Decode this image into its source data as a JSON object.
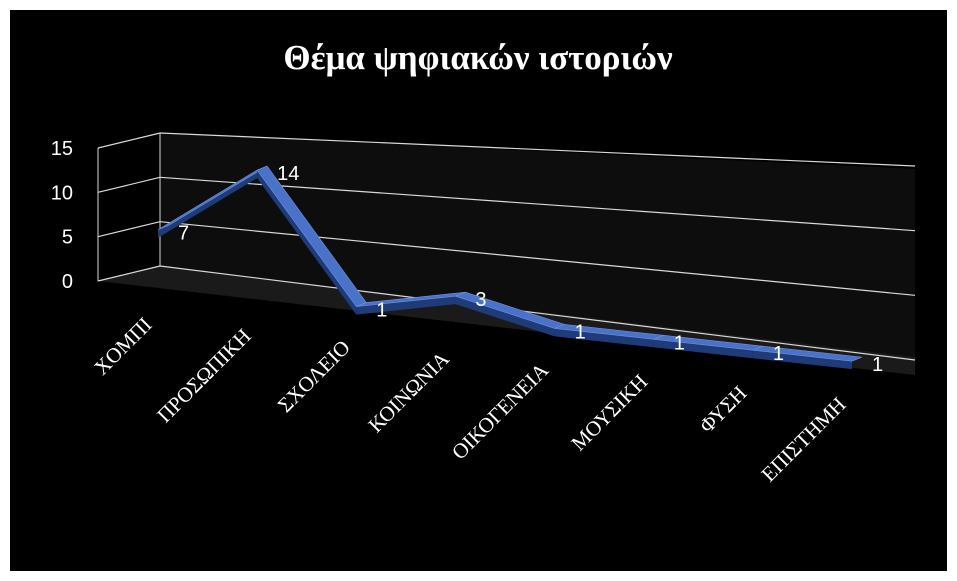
{
  "chart_data": {
    "type": "line",
    "title": "Θέμα ψηφιακών ιστοριών",
    "categories": [
      "ΧΟΜΠΙ",
      "ΠΡΟΣΩΠΙΚΗ",
      "ΣΧΟΛΕΙΟ",
      "ΚΟΙΝΩΝΙΑ",
      "ΟΙΚΟΓΕΝΕΙΑ",
      "ΜΟΥΣΙΚΗ",
      "ΦΥΣΗ",
      "ΕΠΙΣΤΗΜΗ"
    ],
    "values": [
      7,
      14,
      1,
      3,
      1,
      1,
      1,
      1
    ],
    "yticks": [
      0,
      5,
      10,
      15
    ],
    "ylim": [
      0,
      15
    ],
    "grid": true,
    "legend": "none",
    "colors": {
      "background": "#000000",
      "line_top": "#4a72c8",
      "line_side": "#1f3b78",
      "grid": "#d9d9d9"
    }
  }
}
